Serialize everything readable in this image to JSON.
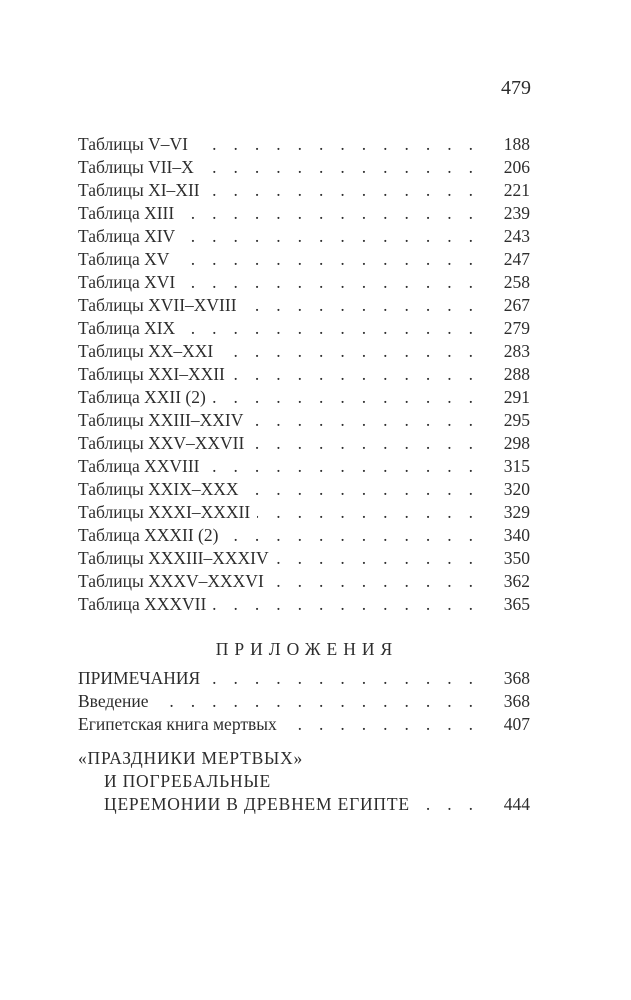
{
  "page": {
    "folio": "479"
  },
  "toc": {
    "entries": [
      {
        "label": "Таблицы V–VI",
        "page": "188"
      },
      {
        "label": "Таблицы VII–X",
        "page": "206"
      },
      {
        "label": "Таблицы XI–XII",
        "page": "221"
      },
      {
        "label": "Таблица XIII",
        "page": "239"
      },
      {
        "label": "Таблица XIV",
        "page": "243"
      },
      {
        "label": "Таблица XV",
        "page": "247"
      },
      {
        "label": "Таблица XVI",
        "page": "258"
      },
      {
        "label": "Таблицы XVII–XVIII",
        "page": "267"
      },
      {
        "label": "Таблица XIX",
        "page": "279"
      },
      {
        "label": "Таблицы XX–XXI",
        "page": "283"
      },
      {
        "label": "Таблицы XXI–XXII",
        "page": "288"
      },
      {
        "label": "Таблица XXII (2)",
        "page": "291"
      },
      {
        "label": "Таблицы XXIII–XXIV",
        "page": "295"
      },
      {
        "label": "Таблицы XXV–XXVII",
        "page": "298"
      },
      {
        "label": "Таблица XXVIII",
        "page": "315"
      },
      {
        "label": "Таблицы XXIX–XXX",
        "page": "320"
      },
      {
        "label": "Таблицы XXXI–XXXII",
        "page": "329"
      },
      {
        "label": "Таблица XXXII (2)",
        "page": "340"
      },
      {
        "label": "Таблицы XXXIII–XXXIV",
        "page": "350"
      },
      {
        "label": "Таблицы XXXV–XXXVI",
        "page": "362"
      },
      {
        "label": "Таблица XXXVII",
        "page": "365"
      }
    ],
    "appendix": {
      "header": "ПРИЛОЖЕНИЯ",
      "entries": [
        {
          "label": "ПРИМЕЧАНИЯ",
          "page": "368"
        },
        {
          "label": "Введение",
          "page": "368"
        },
        {
          "label": "Египетская книга мертвых",
          "page": "407"
        }
      ]
    },
    "festivals_entry": {
      "line1": "«ПРАЗДНИКИ МЕРТВЫХ»",
      "line2": "И ПОГРЕБАЛЬНЫЕ",
      "line3": "ЦЕРЕМОНИИ В ДРЕВНЕМ ЕГИПТЕ",
      "page": "444"
    }
  }
}
